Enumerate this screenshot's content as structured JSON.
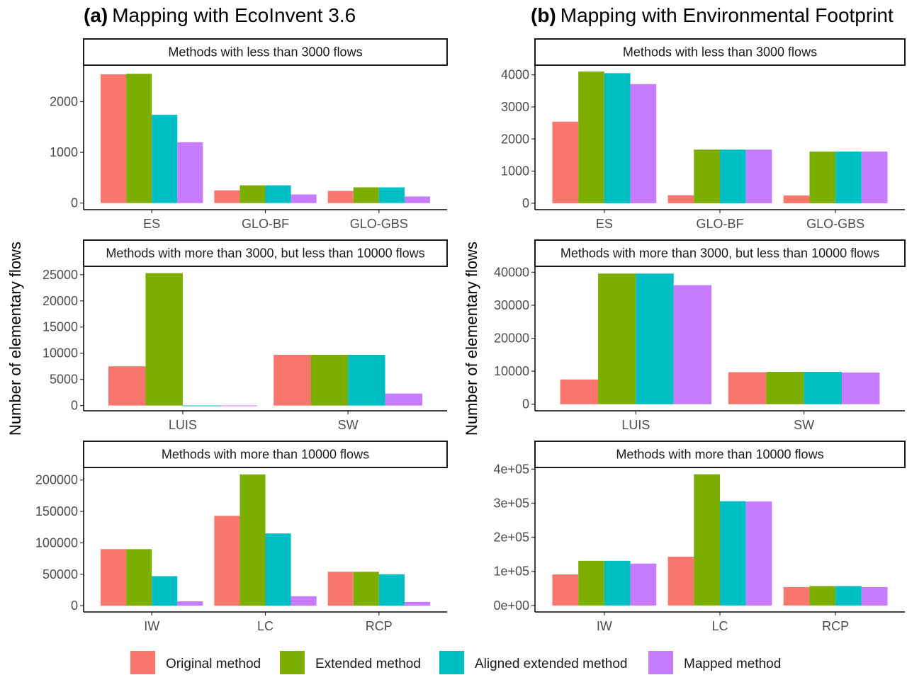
{
  "panels": [
    {
      "label": "(a)",
      "title": "Mapping with EcoInvent 3.6"
    },
    {
      "label": "(b)",
      "title": "Mapping with Environmental Footprint"
    }
  ],
  "ylabel": "Number of elementary flows",
  "legend": [
    {
      "name": "Original method",
      "color": "#F8766D"
    },
    {
      "name": "Extended method",
      "color": "#7CAE00"
    },
    {
      "name": "Aligned extended method",
      "color": "#00BFC4"
    },
    {
      "name": "Mapped method",
      "color": "#C77CFF"
    }
  ],
  "chart_data": [
    {
      "type": "bar",
      "panel": "(a)",
      "facet": "Methods with less than 3000 flows",
      "categories": [
        "ES",
        "GLO-BF",
        "GLO-GBS"
      ],
      "series": [
        {
          "name": "Original method",
          "values": [
            2540,
            250,
            240
          ]
        },
        {
          "name": "Extended method",
          "values": [
            2550,
            350,
            310
          ]
        },
        {
          "name": "Aligned extended method",
          "values": [
            1740,
            350,
            310
          ]
        },
        {
          "name": "Mapped method",
          "values": [
            1200,
            170,
            130
          ]
        }
      ],
      "yticks": [
        "0",
        "1000",
        "2000"
      ],
      "ytick_values": [
        0,
        1000,
        2000
      ],
      "ylim": [
        -130,
        2720
      ],
      "grid": false
    },
    {
      "type": "bar",
      "panel": "(a)",
      "facet": "Methods with more than 3000, but less than 10000 flows",
      "categories": [
        "LUIS",
        "SW"
      ],
      "series": [
        {
          "name": "Original method",
          "values": [
            7500,
            9700
          ]
        },
        {
          "name": "Extended method",
          "values": [
            25300,
            9700
          ]
        },
        {
          "name": "Aligned extended method",
          "values": [
            20,
            9700
          ]
        },
        {
          "name": "Mapped method",
          "values": [
            20,
            2300
          ]
        }
      ],
      "yticks": [
        "0",
        "5000",
        "10000",
        "15000",
        "20000",
        "25000"
      ],
      "ytick_values": [
        0,
        5000,
        10000,
        15000,
        20000,
        25000
      ],
      "ylim": [
        -1000,
        26600
      ],
      "grid": false
    },
    {
      "type": "bar",
      "panel": "(a)",
      "facet": "Methods with more than 10000 flows",
      "categories": [
        "IW",
        "LC",
        "RCP"
      ],
      "series": [
        {
          "name": "Original method",
          "values": [
            90000,
            143000,
            54000
          ]
        },
        {
          "name": "Extended method",
          "values": [
            90000,
            209000,
            54000
          ]
        },
        {
          "name": "Aligned extended method",
          "values": [
            47000,
            115000,
            50000
          ]
        },
        {
          "name": "Mapped method",
          "values": [
            7000,
            15000,
            6000
          ]
        }
      ],
      "yticks": [
        "0",
        "50000",
        "100000",
        "150000",
        "200000"
      ],
      "ytick_values": [
        0,
        50000,
        100000,
        150000,
        200000
      ],
      "ylim": [
        -10000,
        220000
      ],
      "grid": false
    },
    {
      "type": "bar",
      "panel": "(b)",
      "facet": "Methods with less than 3000 flows",
      "categories": [
        "ES",
        "GLO-BF",
        "GLO-GBS"
      ],
      "series": [
        {
          "name": "Original method",
          "values": [
            2540,
            250,
            240
          ]
        },
        {
          "name": "Extended method",
          "values": [
            4100,
            1670,
            1610
          ]
        },
        {
          "name": "Aligned extended method",
          "values": [
            4050,
            1670,
            1610
          ]
        },
        {
          "name": "Mapped method",
          "values": [
            3710,
            1670,
            1610
          ]
        }
      ],
      "yticks": [
        "0",
        "1000",
        "2000",
        "3000",
        "4000"
      ],
      "ytick_values": [
        0,
        1000,
        2000,
        3000,
        4000
      ],
      "ylim": [
        -200,
        4300
      ],
      "grid": false
    },
    {
      "type": "bar",
      "panel": "(b)",
      "facet": "Methods with more than 3000, but less than 10000 flows",
      "categories": [
        "LUIS",
        "SW"
      ],
      "series": [
        {
          "name": "Original method",
          "values": [
            7500,
            9700
          ]
        },
        {
          "name": "Extended method",
          "values": [
            39600,
            9800
          ]
        },
        {
          "name": "Aligned extended method",
          "values": [
            39600,
            9800
          ]
        },
        {
          "name": "Mapped method",
          "values": [
            36100,
            9600
          ]
        }
      ],
      "yticks": [
        "0",
        "10000",
        "20000",
        "30000",
        "40000"
      ],
      "ytick_values": [
        0,
        10000,
        20000,
        30000,
        40000
      ],
      "ylim": [
        -2000,
        41800
      ],
      "grid": false
    },
    {
      "type": "bar",
      "panel": "(b)",
      "facet": "Methods with more than 10000 flows",
      "categories": [
        "IW",
        "LC",
        "RCP"
      ],
      "series": [
        {
          "name": "Original method",
          "values": [
            91000,
            143000,
            54000
          ]
        },
        {
          "name": "Extended method",
          "values": [
            131000,
            385000,
            57000
          ]
        },
        {
          "name": "Aligned extended method",
          "values": [
            131000,
            306000,
            57000
          ]
        },
        {
          "name": "Mapped method",
          "values": [
            123000,
            305000,
            54000
          ]
        }
      ],
      "yticks": [
        "0e+00",
        "1e+05",
        "2e+05",
        "3e+05",
        "4e+05"
      ],
      "ytick_values": [
        0,
        100000,
        200000,
        300000,
        400000
      ],
      "ylim": [
        -19000,
        405000
      ],
      "grid": false
    }
  ]
}
